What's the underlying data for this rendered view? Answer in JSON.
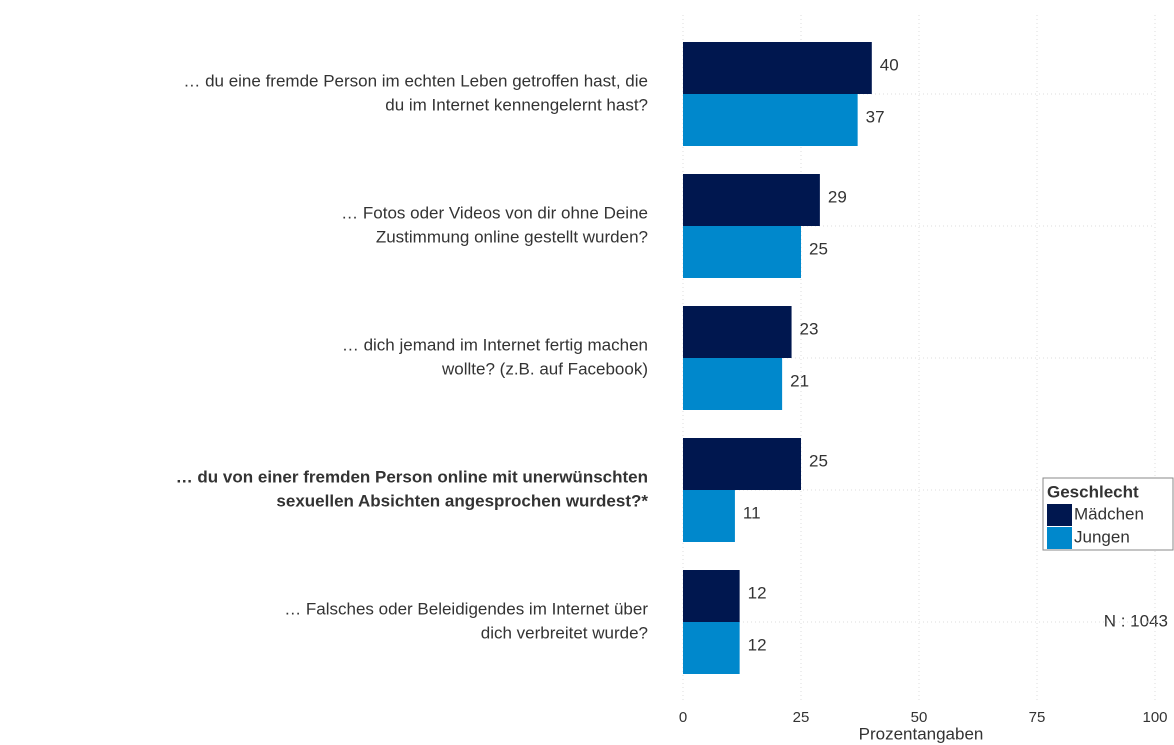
{
  "chart_data": {
    "type": "hbar",
    "categories": [
      [
        "… du eine fremde Person im echten Leben getroffen hast, die",
        "du im Internet kennengelernt hast?"
      ],
      [
        "… Fotos oder Videos von dir ohne Deine",
        "Zustimmung online gestellt wurden?"
      ],
      [
        "… dich jemand im Internet fertig machen",
        "wollte? (z.B. auf Facebook)"
      ],
      [
        "… du von einer fremden Person online mit unerwünschten",
        "sexuellen Absichten angesprochen wurdest?*"
      ],
      [
        "… Falsches oder Beleidigendes im Internet über",
        "dich verbreitet wurde?"
      ]
    ],
    "bold": [
      false,
      false,
      false,
      true,
      false
    ],
    "series": [
      {
        "name": "Mädchen",
        "color": "#00174f",
        "values": [
          40,
          29,
          23,
          25,
          12
        ]
      },
      {
        "name": "Jungen",
        "color": "#0088cc",
        "values": [
          37,
          25,
          21,
          11,
          12
        ]
      }
    ],
    "xlim": [
      0,
      100
    ],
    "xticks": [
      0,
      25,
      50,
      75,
      100
    ],
    "xlabel": "Prozentangaben",
    "legend_title": "Geschlecht",
    "annotation": "N : 1043",
    "grid": true
  }
}
